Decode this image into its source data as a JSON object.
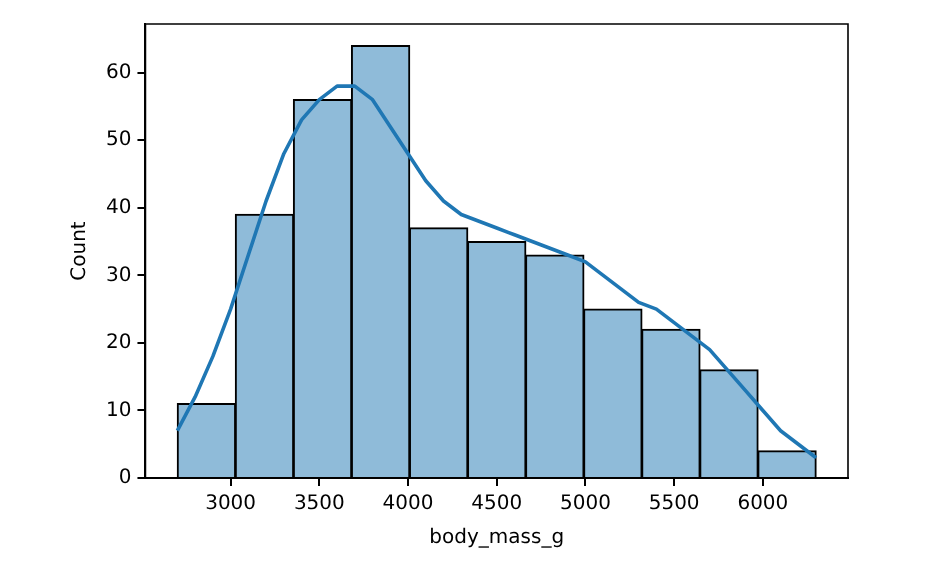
{
  "chart_data": {
    "type": "histogram",
    "xlabel": "body_mass_g",
    "ylabel": "Count",
    "bins": [
      2700,
      3027.27,
      3354.55,
      3681.82,
      4009.09,
      4336.36,
      4663.64,
      4990.91,
      5318.18,
      5645.45,
      5972.73,
      6300
    ],
    "values": [
      11,
      39,
      56,
      64,
      37,
      35,
      33,
      25,
      22,
      16,
      4
    ],
    "color": "#8fbbd9",
    "series": [
      {
        "type": "line",
        "color": "#1f77b4",
        "x": [
          2700,
          2800,
          2900,
          3000,
          3100,
          3200,
          3300,
          3400,
          3500,
          3600,
          3700,
          3800,
          3900,
          4000,
          4100,
          4200,
          4300,
          4400,
          4500,
          4600,
          4700,
          4800,
          4900,
          5000,
          5100,
          5200,
          5300,
          5400,
          5500,
          5600,
          5700,
          5800,
          5900,
          6000,
          6100,
          6200,
          6300
        ],
        "values": [
          7,
          12,
          18,
          25,
          33,
          41,
          48,
          53,
          56,
          58,
          58,
          56,
          52,
          48,
          44,
          41,
          39,
          38,
          37,
          36,
          35,
          34,
          33,
          32,
          30,
          28,
          26,
          25,
          23,
          21,
          19,
          16,
          13,
          10,
          7,
          5,
          3
        ]
      }
    ],
    "xlim": [
      2520,
      6480
    ],
    "xticks": [
      3000,
      3500,
      4000,
      4500,
      5000,
      5500,
      6000
    ],
    "ylim": [
      0,
      67.2
    ],
    "yticks": [
      0,
      10,
      20,
      30,
      40,
      50,
      60
    ],
    "grid": false,
    "legend": false
  }
}
